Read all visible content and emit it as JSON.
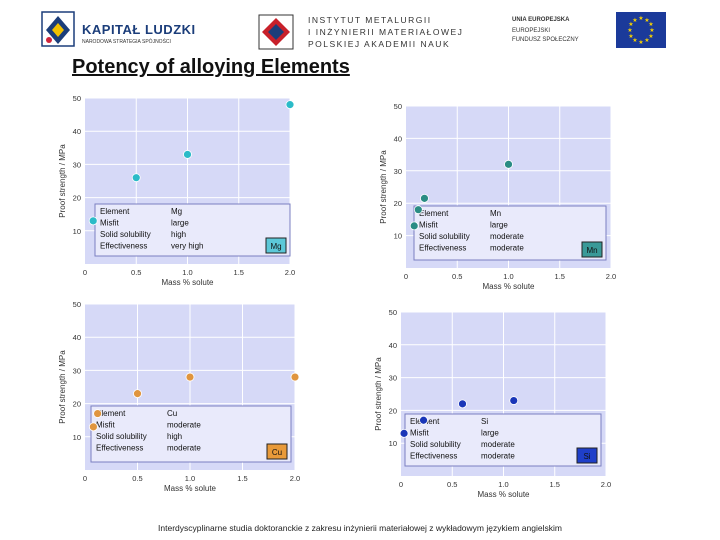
{
  "header": {
    "logo_kl": {
      "title": "KAPITAŁ LUDZKI",
      "subtitle": "NARODOWA STRATEGIA SPÓJNOŚCI"
    },
    "logo_im": {
      "lines": [
        "INSTYTUT METALURGII",
        "I INŻYNIERII MATERIAŁOWEJ",
        "POLSKIEJ AKADEMII NAUK"
      ]
    },
    "logo_ue": {
      "lines": [
        "UNIA EUROPEJSKA",
        "EUROPEJSKI",
        "FUNDUSZ SPOŁECZNY"
      ]
    }
  },
  "page_title": "Potency of alloying Elements",
  "footer": "Interdyscyplinarne studia doktoranckie z zakresu inżynierii materiałowej z wykładowym językiem angielskim",
  "colors": {
    "plot_bg": "#d6d9f7",
    "grid": "#ffffff",
    "table_bg": "#e9eafb"
  },
  "chart_data": [
    {
      "type": "scatter",
      "element_label": "Mg",
      "label_color": "#5cc8d8",
      "point_color": "#2bbbc8",
      "xlabel": "Mass % solute",
      "ylabel": "Proof strength / MPa",
      "xlim": [
        0,
        2.0
      ],
      "ylim": [
        0,
        50
      ],
      "xticks": [
        "0",
        "0.5",
        "1.0",
        "1.5",
        "2.0"
      ],
      "yticks": [
        "10",
        "20",
        "30",
        "40",
        "50"
      ],
      "x": [
        0.08,
        0.5,
        1.0,
        2.0
      ],
      "y": [
        13,
        26,
        33,
        48
      ],
      "table": [
        [
          "Element",
          "Mg"
        ],
        [
          "Misfit",
          "large"
        ],
        [
          "Solid solubility",
          "high"
        ],
        [
          "Effectiveness",
          "very high"
        ]
      ]
    },
    {
      "type": "scatter",
      "element_label": "Mn",
      "label_color": "#3a9a98",
      "point_color": "#2a8c84",
      "xlabel": "Mass % solute",
      "ylabel": "Proof strength / MPa",
      "xlim": [
        0,
        2.0
      ],
      "ylim": [
        0,
        50
      ],
      "xticks": [
        "0",
        "0.5",
        "1.0",
        "1.5",
        "2.0"
      ],
      "yticks": [
        "10",
        "20",
        "30",
        "40",
        "50"
      ],
      "x": [
        0.08,
        0.12,
        0.18,
        1.0
      ],
      "y": [
        13,
        18,
        21.5,
        32
      ],
      "table": [
        [
          "Element",
          "Mn"
        ],
        [
          "Misfit",
          "large"
        ],
        [
          "Solid solubility",
          "moderate"
        ],
        [
          "Effectiveness",
          "moderate"
        ]
      ]
    },
    {
      "type": "scatter",
      "element_label": "Cu",
      "label_color": "#e89a3a",
      "point_color": "#e0953f",
      "xlabel": "Mass % solute",
      "ylabel": "Proof strength / MPa",
      "xlim": [
        0,
        2.0
      ],
      "ylim": [
        0,
        50
      ],
      "xticks": [
        "0",
        "0.5",
        "1.0",
        "1.5",
        "2.0"
      ],
      "yticks": [
        "10",
        "20",
        "30",
        "40",
        "50"
      ],
      "x": [
        0.08,
        0.12,
        0.5,
        1.0,
        2.0
      ],
      "y": [
        13,
        17,
        23,
        28,
        28
      ],
      "table": [
        [
          "Element",
          "Cu"
        ],
        [
          "Misfit",
          "moderate"
        ],
        [
          "Solid solubility",
          "high"
        ],
        [
          "Effectiveness",
          "moderate"
        ]
      ]
    },
    {
      "type": "scatter",
      "element_label": "Si",
      "label_color": "#1f3fc9",
      "point_color": "#1a36b8",
      "xlabel": "Mass % solute",
      "ylabel": "Proof strength / MPa",
      "xlim": [
        0,
        2.0
      ],
      "ylim": [
        0,
        50
      ],
      "xticks": [
        "0",
        "0.5",
        "1.0",
        "1.5",
        "2.0"
      ],
      "yticks": [
        "10",
        "20",
        "30",
        "40",
        "50"
      ],
      "x": [
        0.03,
        0.22,
        0.6,
        1.1
      ],
      "y": [
        13,
        17,
        22,
        23
      ],
      "table": [
        [
          "Element",
          "Si"
        ],
        [
          "Misfit",
          "large"
        ],
        [
          "Solid solubility",
          "moderate"
        ],
        [
          "Effectiveness",
          "moderate"
        ]
      ]
    }
  ]
}
